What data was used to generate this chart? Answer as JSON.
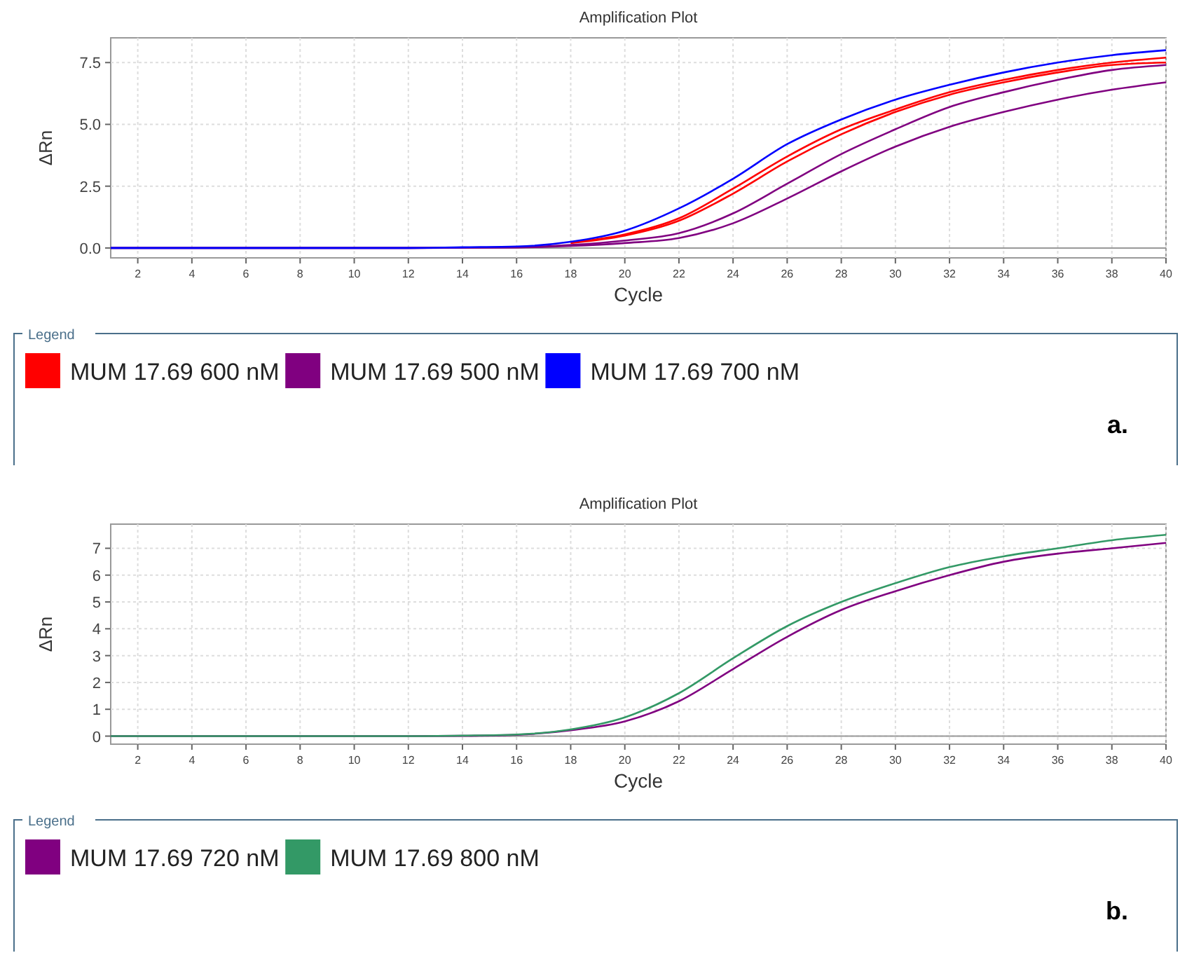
{
  "chart_data": [
    {
      "type": "line",
      "title": "Amplification Plot",
      "xlabel": "Cycle",
      "ylabel": "ΔRn",
      "legend_title": "Legend",
      "annotations": [
        "a."
      ],
      "x": [
        1,
        12,
        14,
        16,
        18,
        20,
        22,
        24,
        26,
        28,
        30,
        32,
        34,
        36,
        38,
        40
      ],
      "xlim": [
        1,
        40
      ],
      "xticks": [
        2,
        4,
        6,
        8,
        10,
        12,
        14,
        16,
        18,
        20,
        22,
        24,
        26,
        28,
        30,
        32,
        34,
        36,
        38,
        40
      ],
      "ylim": [
        -0.4,
        8.5
      ],
      "yticks": [
        {
          "value": 0,
          "label": "0.0"
        },
        {
          "value": 2.5,
          "label": "2.5"
        },
        {
          "value": 5,
          "label": "5.0"
        },
        {
          "value": 7.5,
          "label": "7.5"
        }
      ],
      "grid": true,
      "legend": "bottom",
      "marker": "none",
      "line_style": "solid",
      "series": [
        {
          "name": "MUM 17.69 600 nM",
          "color": "#ff0000",
          "values": [
            null,
            null,
            null,
            null,
            0.22,
            0.55,
            1.2,
            2.4,
            3.7,
            4.8,
            5.6,
            6.3,
            6.8,
            7.2,
            7.5,
            7.7
          ]
        },
        {
          "color": "#ff0000",
          "values": [
            null,
            null,
            null,
            null,
            0.2,
            0.5,
            1.1,
            2.2,
            3.5,
            4.6,
            5.5,
            6.2,
            6.7,
            7.1,
            7.4,
            7.5
          ]
        },
        {
          "name": "MUM 17.69 500 nM",
          "color": "#800080",
          "values": [
            0,
            0,
            0.01,
            0.03,
            0.12,
            0.3,
            0.6,
            1.4,
            2.6,
            3.8,
            4.8,
            5.7,
            6.3,
            6.8,
            7.2,
            7.4
          ]
        },
        {
          "color": "#800080",
          "values": [
            0,
            0,
            0.01,
            0.02,
            0.08,
            0.2,
            0.4,
            1.0,
            2.0,
            3.1,
            4.1,
            4.9,
            5.5,
            6.0,
            6.4,
            6.7
          ]
        },
        {
          "name": "MUM 17.69 700 nM",
          "color": "#0000ff",
          "values": [
            0,
            0,
            0.03,
            0.06,
            0.25,
            0.7,
            1.6,
            2.8,
            4.2,
            5.2,
            6.0,
            6.6,
            7.1,
            7.5,
            7.8,
            8.0
          ]
        }
      ]
    },
    {
      "type": "line",
      "title": "Amplification Plot",
      "xlabel": "Cycle",
      "ylabel": "ΔRn",
      "legend_title": "Legend",
      "annotations": [
        "b."
      ],
      "x": [
        1,
        12,
        14,
        16,
        18,
        20,
        22,
        24,
        26,
        28,
        30,
        32,
        34,
        36,
        38,
        40
      ],
      "xlim": [
        1,
        40
      ],
      "xticks": [
        2,
        4,
        6,
        8,
        10,
        12,
        14,
        16,
        18,
        20,
        22,
        24,
        26,
        28,
        30,
        32,
        34,
        36,
        38,
        40
      ],
      "ylim": [
        -0.3,
        7.9
      ],
      "yticks": [
        0,
        1,
        2,
        3,
        4,
        5,
        6,
        7
      ],
      "grid": true,
      "legend": "bottom",
      "marker": "none",
      "line_style": "solid",
      "series": [
        {
          "name": "MUM 17.69 720 nM",
          "color": "#800080",
          "values": [
            0,
            0,
            0.01,
            0.05,
            0.22,
            0.55,
            1.3,
            2.5,
            3.7,
            4.7,
            5.4,
            6.0,
            6.5,
            6.8,
            7.0,
            7.2
          ]
        },
        {
          "name": "MUM 17.69 800 nM",
          "color": "#339966",
          "values": [
            0,
            0,
            0.02,
            0.06,
            0.25,
            0.7,
            1.6,
            2.9,
            4.1,
            5.0,
            5.7,
            6.3,
            6.7,
            7.0,
            7.3,
            7.5
          ]
        }
      ]
    }
  ]
}
